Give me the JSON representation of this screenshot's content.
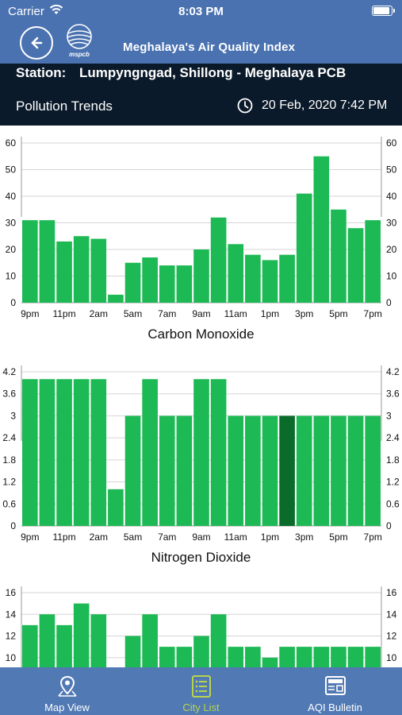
{
  "status_bar": {
    "carrier": "Carrier",
    "time": "8:03 PM",
    "battery_level": 0.95
  },
  "header": {
    "title": "Meghalaya's Air Quality Index",
    "logo_text": "mspcb"
  },
  "station": {
    "prefix": "Station:",
    "name": "Lumpyngngad, Shillong - Meghalaya PCB",
    "section": "Pollution Trends",
    "timestamp": "20 Feb, 2020 7:42 PM"
  },
  "colors": {
    "bar": "#1db954",
    "bar_selected": "#0a6b2b",
    "nav": "#4a72b0",
    "station_bg": "#0b1a2a",
    "tab_active": "#b9d44a"
  },
  "x_tick_labels": [
    "9pm",
    "11pm",
    "2am",
    "5am",
    "7am",
    "9am",
    "11am",
    "1pm",
    "3pm",
    "5pm",
    "7pm"
  ],
  "chart_data": [
    {
      "type": "bar",
      "title": "Carbon Monoxide",
      "ylim": [
        0,
        60
      ],
      "yticks": [
        "0",
        "10",
        "20",
        "30",
        "40",
        "50",
        "60"
      ],
      "values": [
        31,
        31,
        23,
        25,
        24,
        3,
        15,
        17,
        14,
        14,
        20,
        32,
        22,
        18,
        16,
        18,
        41,
        55,
        35,
        28,
        31
      ],
      "selected_index": -1
    },
    {
      "type": "bar",
      "title": "Nitrogen Dioxide",
      "ylim": [
        0,
        4.2
      ],
      "yticks": [
        "0",
        "0.6",
        "1.2",
        "1.8",
        "2.4",
        "3",
        "3.6",
        "4.2"
      ],
      "values": [
        4,
        4,
        4,
        4,
        4,
        1,
        3,
        4,
        3,
        3,
        4,
        4,
        3,
        3,
        3,
        3,
        3,
        3,
        3,
        3,
        3
      ],
      "selected_index": 15
    },
    {
      "type": "bar",
      "title": "",
      "ylim": [
        8,
        16
      ],
      "yticks": [
        "10",
        "12",
        "14",
        "16"
      ],
      "values": [
        13,
        14,
        13,
        15,
        14,
        8,
        12,
        14,
        11,
        11,
        12,
        14,
        11,
        11,
        10,
        11,
        11,
        11,
        11,
        11,
        11
      ],
      "selected_index": -1
    }
  ],
  "tabs": [
    {
      "label": "Map View",
      "icon": "map-pin-icon",
      "active": false
    },
    {
      "label": "City List",
      "icon": "list-icon",
      "active": true
    },
    {
      "label": "AQI Bulletin",
      "icon": "news-icon",
      "active": false
    }
  ]
}
